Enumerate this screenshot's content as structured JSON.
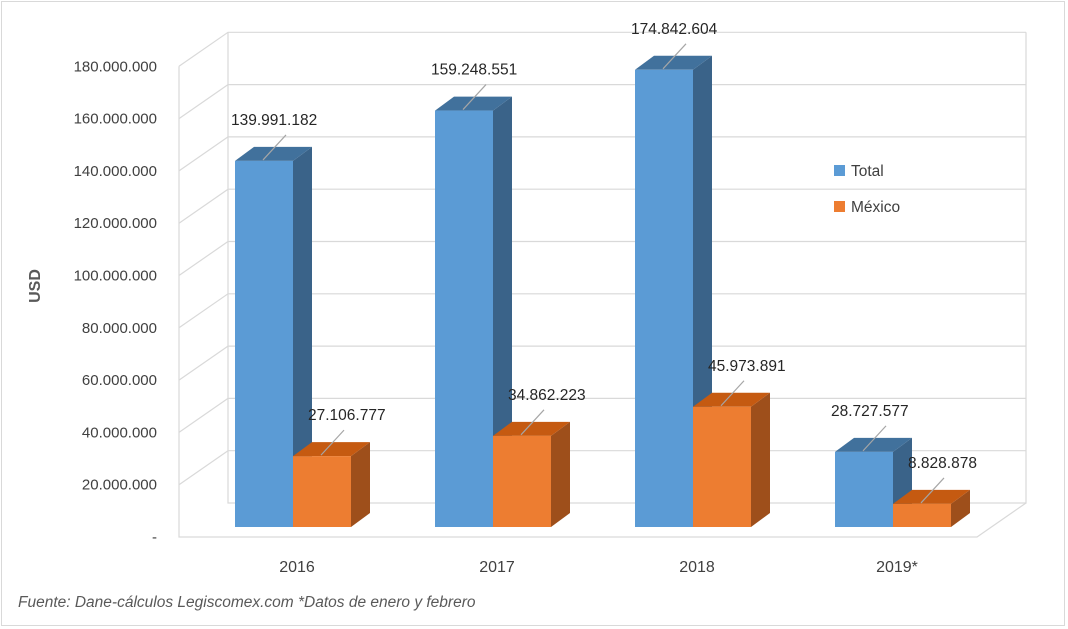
{
  "chart_data": {
    "type": "bar",
    "categories": [
      "2016",
      "2017",
      "2018",
      "2019*"
    ],
    "series": [
      {
        "name": "Total",
        "color": "#5b9bd5",
        "side_color": "#3a6389",
        "top_color": "#41719c",
        "values": [
          139991182,
          159248551,
          174842604,
          28727577
        ],
        "labels": [
          "139.991.182",
          "159.248.551",
          "174.842.604",
          "28.727.577"
        ]
      },
      {
        "name": "México",
        "color": "#ed7d31",
        "side_color": "#9e4f1b",
        "top_color": "#c55a11",
        "values": [
          27106777,
          34862223,
          45973891,
          8828878
        ],
        "labels": [
          "27.106.777",
          "34.862.223",
          "45.973.891",
          "8.828.878"
        ]
      }
    ],
    "ylabel": "USD",
    "xlabel": "",
    "ylim": [
      0,
      180000000
    ],
    "yticks": [
      0,
      20000000,
      40000000,
      60000000,
      80000000,
      100000000,
      120000000,
      140000000,
      160000000,
      180000000
    ],
    "ytick_labels": [
      "-",
      "20.000.000",
      "40.000.000",
      "60.000.000",
      "80.000.000",
      "100.000.000",
      "120.000.000",
      "140.000.000",
      "160.000.000",
      "180.000.000"
    ],
    "grid": true,
    "legend_position": "right",
    "style": "3d-clustered-column"
  },
  "source_note": "Fuente: Dane-cálculos Legiscomex.com  *Datos de enero y febrero"
}
